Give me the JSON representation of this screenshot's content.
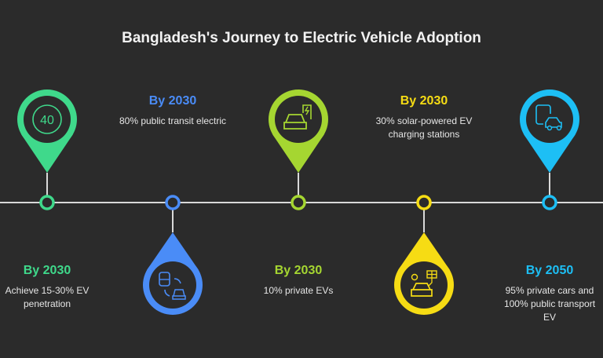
{
  "title": "Bangladesh's Journey to Electric Vehicle Adoption",
  "milestones": [
    {
      "year": "By 2030",
      "text": "Achieve 15-30% EV penetration",
      "color": "#3fd98b",
      "icon": "speed-40-icon",
      "icon_text": "40",
      "pin": "up"
    },
    {
      "year": "By 2030",
      "text": "80% public transit electric",
      "color": "#4a8cf7",
      "icon": "train-car-switch-icon",
      "pin": "down"
    },
    {
      "year": "By 2030",
      "text": "10% private EVs",
      "color": "#a5d631",
      "icon": "car-charging-icon",
      "pin": "up"
    },
    {
      "year": "By 2030",
      "text": "30% solar-powered EV charging stations",
      "color": "#f6dc14",
      "icon": "solar-car-icon",
      "pin": "down"
    },
    {
      "year": "By 2050",
      "text": "95% private cars and 100% public transport EV",
      "color": "#1dbff5",
      "icon": "phone-car-icon",
      "pin": "up"
    }
  ]
}
